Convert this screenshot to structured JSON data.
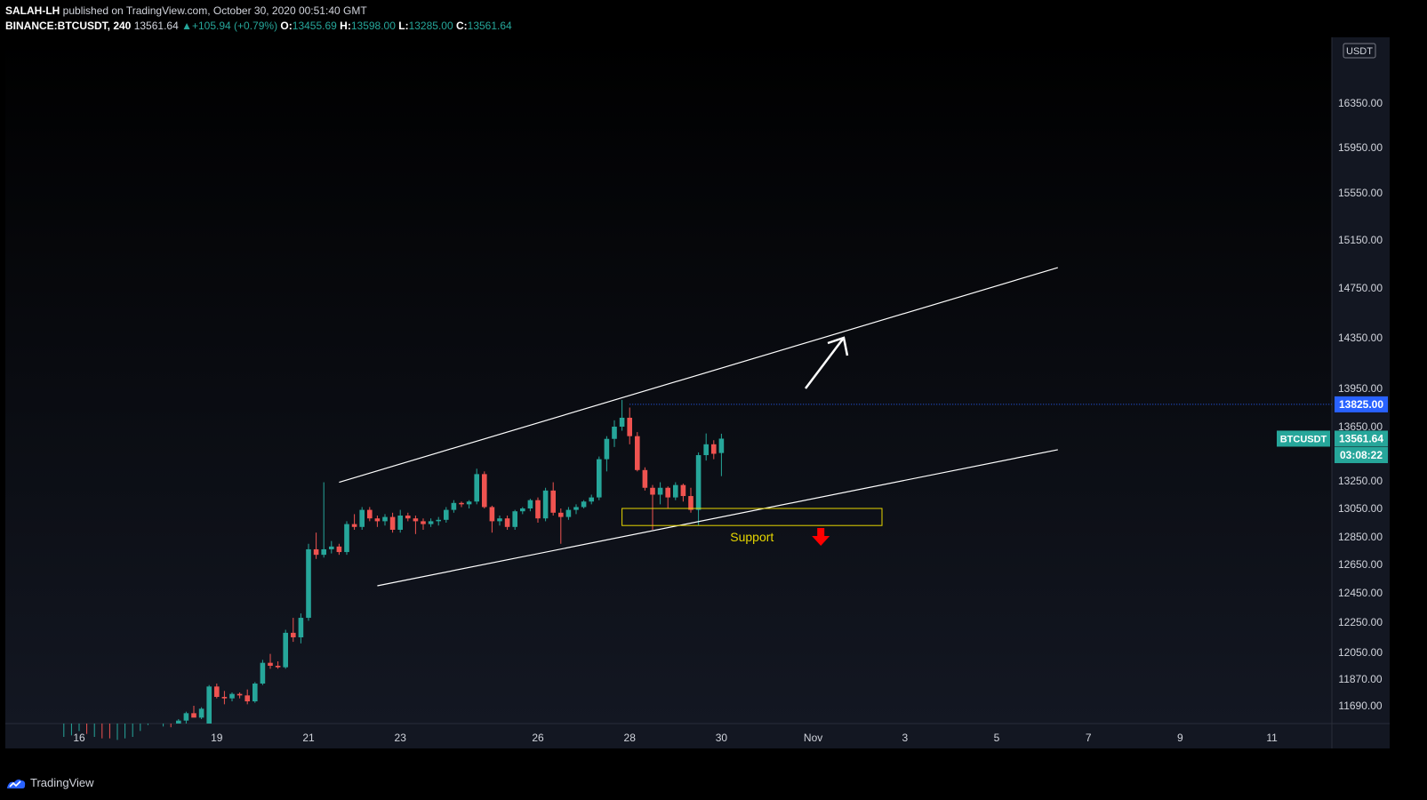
{
  "header": {
    "author": "SALAH-LH",
    "published_text": "published on TradingView.com, October 30, 2020 00:51:40 GMT",
    "symbol": "BINANCE:BTCUSDT, 240",
    "last": "13561.64",
    "change": "+105.94 (+0.79%)",
    "o_label": "O:",
    "o": "13455.69",
    "h_label": "H:",
    "h": "13598.00",
    "l_label": "L:",
    "l": "13285.00",
    "c_label": "C:",
    "c": "13561.64"
  },
  "footer": {
    "brand": "TradingView"
  },
  "colors": {
    "up": "#26a69a",
    "down": "#ef5350",
    "background": "#131722",
    "blue_tag": "#2962ff",
    "support_box": "#e6d600",
    "arrow_down": "#ff0000"
  },
  "chart_data": {
    "type": "candlestick",
    "currency_label": "USDT",
    "y_ticks": [
      "16350.00",
      "15950.00",
      "15550.00",
      "15150.00",
      "14750.00",
      "14350.00",
      "13950.00",
      "13650.00",
      "13250.00",
      "13050.00",
      "12850.00",
      "12650.00",
      "12450.00",
      "12250.00",
      "12050.00",
      "11870.00",
      "11690.00"
    ],
    "x_ticks": [
      {
        "label": "16",
        "date": "2020-10-16"
      },
      {
        "label": "19",
        "date": "2020-10-19"
      },
      {
        "label": "21",
        "date": "2020-10-21"
      },
      {
        "label": "23",
        "date": "2020-10-23"
      },
      {
        "label": "26",
        "date": "2020-10-26"
      },
      {
        "label": "28",
        "date": "2020-10-28"
      },
      {
        "label": "30",
        "date": "2020-10-30"
      },
      {
        "label": "Nov",
        "date": "2020-11-01"
      },
      {
        "label": "3",
        "date": "2020-11-03"
      },
      {
        "label": "5",
        "date": "2020-11-05"
      },
      {
        "label": "7",
        "date": "2020-11-07"
      },
      {
        "label": "9",
        "date": "2020-11-09"
      },
      {
        "label": "11",
        "date": "2020-11-11"
      }
    ],
    "price_tags": [
      {
        "text": "13825.00",
        "price": 13825,
        "color": "#2962ff"
      },
      {
        "symbol": "BTCUSDT",
        "text": "13561.64",
        "price": 13561.64,
        "color": "#26a69a"
      },
      {
        "text": "03:08:22",
        "price": 13440,
        "color": "#26a69a"
      }
    ],
    "horizontal_line": {
      "price": 13825
    },
    "candles": [
      [
        11420,
        11480,
        11380,
        11440
      ],
      [
        11440,
        11490,
        11410,
        11470
      ],
      [
        11470,
        11520,
        11445,
        11495
      ],
      [
        11495,
        11500,
        11390,
        11430
      ],
      [
        11430,
        11480,
        11420,
        11460
      ],
      [
        11460,
        11470,
        11440,
        11455
      ],
      [
        11455,
        11470,
        11380,
        11400
      ],
      [
        11400,
        11460,
        11390,
        11445
      ],
      [
        11445,
        11470,
        11430,
        11460
      ],
      [
        11460,
        11480,
        11440,
        11470
      ],
      [
        11470,
        11520,
        11450,
        11510
      ],
      [
        11510,
        11560,
        11490,
        11550
      ],
      [
        11550,
        11570,
        11510,
        11520
      ],
      [
        11520,
        11550,
        11490,
        11535
      ],
      [
        11535,
        11545,
        11505,
        11515
      ],
      [
        11515,
        11600,
        11500,
        11590
      ],
      [
        11590,
        11650,
        11570,
        11640
      ],
      [
        11640,
        11690,
        11620,
        11610
      ],
      [
        11610,
        11680,
        11600,
        11670
      ],
      [
        11570,
        11830,
        11560,
        11820
      ],
      [
        11820,
        11840,
        11740,
        11750
      ],
      [
        11750,
        11790,
        11700,
        11740
      ],
      [
        11740,
        11780,
        11720,
        11770
      ],
      [
        11770,
        11780,
        11740,
        11760
      ],
      [
        11760,
        11800,
        11700,
        11720
      ],
      [
        11720,
        11850,
        11710,
        11840
      ],
      [
        11840,
        12000,
        11830,
        11980
      ],
      [
        11980,
        12040,
        11940,
        11960
      ],
      [
        11960,
        11990,
        11940,
        11950
      ],
      [
        11950,
        12200,
        11940,
        12180
      ],
      [
        12180,
        12280,
        12120,
        12150
      ],
      [
        12150,
        12310,
        12110,
        12280
      ],
      [
        12280,
        12800,
        12260,
        12760
      ],
      [
        12760,
        12880,
        12690,
        12720
      ],
      [
        12720,
        13240,
        12700,
        12760
      ],
      [
        12760,
        12820,
        12730,
        12780
      ],
      [
        12780,
        12800,
        12720,
        12740
      ],
      [
        12740,
        12960,
        12720,
        12940
      ],
      [
        12940,
        13010,
        12900,
        12920
      ],
      [
        12920,
        13060,
        12900,
        13040
      ],
      [
        13040,
        13060,
        12960,
        12980
      ],
      [
        12980,
        13000,
        12920,
        12960
      ],
      [
        12960,
        13010,
        12930,
        12990
      ],
      [
        12990,
        13020,
        12880,
        12900
      ],
      [
        12900,
        13040,
        12880,
        13000
      ],
      [
        13000,
        13020,
        12960,
        12980
      ],
      [
        12980,
        13000,
        12870,
        12960
      ],
      [
        12960,
        12980,
        12900,
        12940
      ],
      [
        12940,
        12980,
        12920,
        12960
      ],
      [
        12960,
        12990,
        12930,
        12970
      ],
      [
        12970,
        13060,
        12950,
        13040
      ],
      [
        13040,
        13110,
        13020,
        13090
      ],
      [
        13090,
        13100,
        13060,
        13080
      ],
      [
        13080,
        13110,
        13050,
        13100
      ],
      [
        13100,
        13340,
        13080,
        13300
      ],
      [
        13300,
        13320,
        13050,
        13060
      ],
      [
        13060,
        13070,
        12880,
        12960
      ],
      [
        12960,
        13000,
        12930,
        12980
      ],
      [
        12980,
        13000,
        12900,
        12920
      ],
      [
        12920,
        13040,
        12900,
        13030
      ],
      [
        13030,
        13060,
        13010,
        13050
      ],
      [
        13050,
        13120,
        13030,
        13110
      ],
      [
        13110,
        13130,
        12950,
        12980
      ],
      [
        12980,
        13200,
        12960,
        13180
      ],
      [
        13180,
        13240,
        13000,
        13020
      ],
      [
        13020,
        13050,
        12800,
        12990
      ],
      [
        12990,
        13060,
        12970,
        13040
      ],
      [
        13040,
        13080,
        13010,
        13060
      ],
      [
        13060,
        13110,
        13050,
        13100
      ],
      [
        13100,
        13150,
        13080,
        13130
      ],
      [
        13130,
        13430,
        13110,
        13410
      ],
      [
        13410,
        13580,
        13320,
        13560
      ],
      [
        13560,
        13700,
        13500,
        13650
      ],
      [
        13650,
        13860,
        13620,
        13720
      ],
      [
        13720,
        13800,
        13520,
        13580
      ],
      [
        13580,
        13610,
        13320,
        13330
      ],
      [
        13330,
        13350,
        13180,
        13200
      ],
      [
        13200,
        13220,
        12900,
        13150
      ],
      [
        13150,
        13240,
        13080,
        13200
      ],
      [
        13200,
        13210,
        13050,
        13130
      ],
      [
        13130,
        13240,
        13110,
        13220
      ],
      [
        13220,
        13230,
        13100,
        13140
      ],
      [
        13140,
        13200,
        13020,
        13040
      ],
      [
        13040,
        13460,
        12930,
        13440
      ],
      [
        13440,
        13600,
        13400,
        13520
      ],
      [
        13520,
        13550,
        13410,
        13450
      ],
      [
        13455.69,
        13598,
        13285,
        13561.64
      ]
    ],
    "drawings": [
      {
        "type": "trend_line",
        "from": {
          "date": "2020-10-21T16:00",
          "price": 13240
        },
        "to": {
          "date": "2020-11-06T08:00",
          "price": 14920
        }
      },
      {
        "type": "trend_line",
        "from": {
          "date": "2020-10-22T12:00",
          "price": 12500
        },
        "to": {
          "date": "2020-11-06T08:00",
          "price": 13480
        }
      },
      {
        "type": "rectangle",
        "label": "Support",
        "from": {
          "date": "2020-10-27T20:00",
          "price": 13050
        },
        "to": {
          "date": "2020-11-02T12:00",
          "price": 12930
        }
      },
      {
        "type": "arrow",
        "direction": "up",
        "from": {
          "date": "2020-10-31T20:00",
          "price": 13950
        },
        "to": {
          "date": "2020-11-01T16:00",
          "price": 14350
        }
      },
      {
        "type": "arrow",
        "direction": "down",
        "date": "2020-11-01T04:00",
        "price": 12850
      }
    ]
  }
}
